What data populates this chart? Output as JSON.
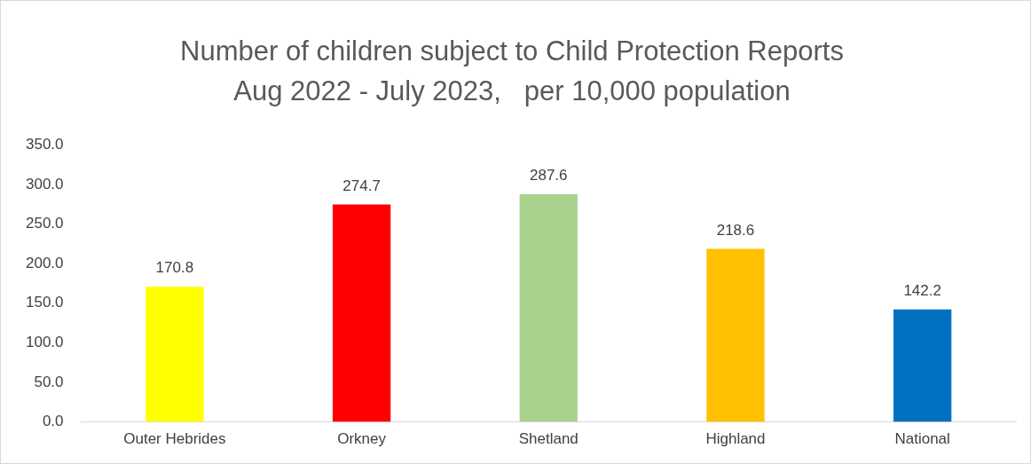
{
  "chart_data": {
    "type": "bar",
    "title": "Number of children subject to Child Protection Reports",
    "subtitle": "Aug 2022 - July 2023,   per 10,000 population",
    "categories": [
      "Outer Hebrides",
      "Orkney",
      "Shetland",
      "Highland",
      "National"
    ],
    "values": [
      170.8,
      274.7,
      287.6,
      218.6,
      142.2
    ],
    "colors": [
      "#ffff00",
      "#ff0000",
      "#a9d18e",
      "#ffc000",
      "#0070c0"
    ],
    "ylim": [
      0,
      350
    ],
    "yticks": [
      {
        "value": 0,
        "label": "0.0"
      },
      {
        "value": 50,
        "label": "50.0"
      },
      {
        "value": 100,
        "label": "100.0"
      },
      {
        "value": 150,
        "label": "150.0"
      },
      {
        "value": 200,
        "label": "200.0"
      },
      {
        "value": 250,
        "label": "250.0"
      },
      {
        "value": 300,
        "label": "300.0"
      },
      {
        "value": 350,
        "label": "350.0"
      }
    ],
    "data_labels": true,
    "grid": false,
    "legend": false
  }
}
